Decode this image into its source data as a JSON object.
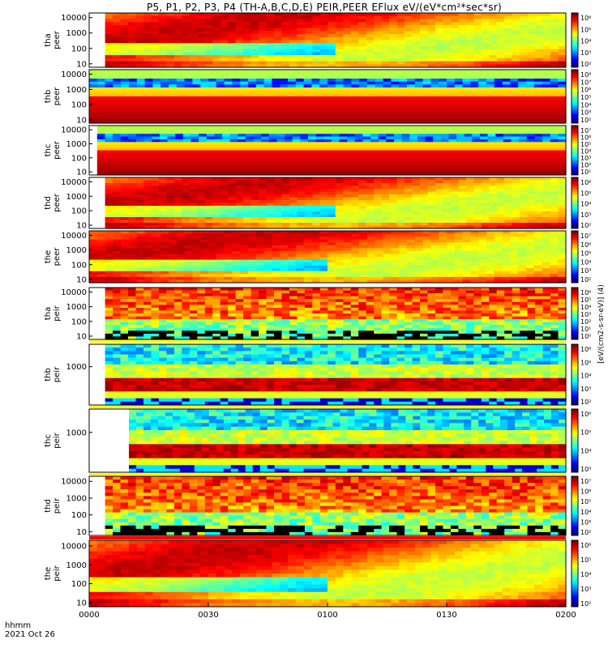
{
  "title": "P5, P1, P2, P3, P4 (TH-A,B,C,D,E) PEIR,PEER EFlux eV/(eV*cm²*sec*sr)",
  "time_axis": {
    "label_line1": "hhmm",
    "label_line2": "2021 Oct 26",
    "ticks": [
      "0000",
      "0030",
      "0100",
      "0130",
      "0200"
    ]
  },
  "colorbar_label": "[eV/(cm2-s-sr-eV)] (4)",
  "chart_data": [
    {
      "type": "heatmap",
      "panel": "tha peer",
      "ylabel": [
        "tha",
        "peer"
      ],
      "yscale": "log",
      "yticks": [
        "10000",
        "1000",
        "100",
        "10"
      ],
      "ylim": [
        6,
        20000
      ],
      "colorbar_ticks": [
        "10⁶",
        "10⁵",
        "10⁴",
        "10³",
        "10²"
      ],
      "data_start": "0004",
      "level": "high"
    },
    {
      "type": "heatmap",
      "panel": "thb peer",
      "ylabel": [
        "thb",
        "peer"
      ],
      "yscale": "log",
      "yticks": [
        "10000",
        "1000",
        "100",
        "10"
      ],
      "ylim": [
        6,
        20000
      ],
      "colorbar_ticks": [
        "10⁸",
        "10⁷",
        "10⁶",
        "10⁵",
        "10⁴",
        "10³",
        "10²"
      ],
      "data_start": "0000",
      "level": "banded"
    },
    {
      "type": "heatmap",
      "panel": "thc peer",
      "ylabel": [
        "thc",
        "peer"
      ],
      "yscale": "log",
      "yticks": [
        "10000",
        "1000",
        "100",
        "10"
      ],
      "ylim": [
        6,
        20000
      ],
      "colorbar_ticks": [
        "10⁷",
        "10⁶",
        "10⁵",
        "10⁴",
        "10³",
        "10²",
        "10¹"
      ],
      "data_start": "0002",
      "level": "banded"
    },
    {
      "type": "heatmap",
      "panel": "thd peer",
      "ylabel": [
        "thd",
        "peer"
      ],
      "yscale": "log",
      "yticks": [
        "10000",
        "1000",
        "100",
        "10"
      ],
      "ylim": [
        6,
        20000
      ],
      "colorbar_ticks": [
        "10⁶",
        "10⁵",
        "10⁴",
        "10³",
        "10²"
      ],
      "data_start": "0004",
      "level": "high"
    },
    {
      "type": "heatmap",
      "panel": "the peer",
      "ylabel": [
        "the",
        "peer"
      ],
      "yscale": "log",
      "yticks": [
        "10000",
        "1000",
        "100",
        "10"
      ],
      "ylim": [
        6,
        20000
      ],
      "colorbar_ticks": [
        "10⁷",
        "10⁶",
        "10⁵",
        "10⁴",
        "10³",
        "10²"
      ],
      "data_start": "0000",
      "level": "high"
    },
    {
      "type": "heatmap",
      "panel": "tha peir",
      "ylabel": [
        "tha",
        "peir"
      ],
      "yscale": "log",
      "yticks": [
        "10000",
        "1000",
        "100",
        "10"
      ],
      "ylim": [
        6,
        20000
      ],
      "colorbar_ticks": [
        "10⁶",
        "10⁵",
        "10⁴",
        "10³",
        "10²",
        "10¹",
        "10⁰"
      ],
      "data_start": "0004",
      "level": "noisy"
    },
    {
      "type": "heatmap",
      "panel": "thb peir",
      "ylabel": [
        "thb",
        "peir"
      ],
      "yscale": "log",
      "yticks": [
        "1000"
      ],
      "ylim": [
        6,
        20000
      ],
      "colorbar_ticks": [
        "10⁶",
        "10⁵",
        "10⁴",
        "10³",
        "10²"
      ],
      "data_start": "0004",
      "level": "ion-banded"
    },
    {
      "type": "heatmap",
      "panel": "thc peir",
      "ylabel": [
        "thc",
        "peir"
      ],
      "yscale": "log",
      "yticks": [
        "1000"
      ],
      "ylim": [
        6,
        20000
      ],
      "colorbar_ticks": [
        "10⁶",
        "10⁵",
        "10⁴",
        "10³"
      ],
      "data_start": "0010",
      "level": "ion-banded"
    },
    {
      "type": "heatmap",
      "panel": "thd peir",
      "ylabel": [
        "thd",
        "peir"
      ],
      "yscale": "log",
      "yticks": [
        "10000",
        "1000",
        "100",
        "10"
      ],
      "ylim": [
        6,
        20000
      ],
      "colorbar_ticks": [
        "10⁷",
        "10⁶",
        "10⁵",
        "10⁴",
        "10³",
        "10²"
      ],
      "data_start": "0004",
      "level": "noisy"
    },
    {
      "type": "heatmap",
      "panel": "the peir",
      "ylabel": [
        "the",
        "peir"
      ],
      "yscale": "log",
      "yticks": [
        "10000",
        "1000",
        "100",
        "10"
      ],
      "ylim": [
        6,
        20000
      ],
      "colorbar_ticks": [
        "10⁶",
        "10⁵",
        "10⁴",
        "10³",
        "10²"
      ],
      "data_start": "0000",
      "level": "high"
    }
  ]
}
